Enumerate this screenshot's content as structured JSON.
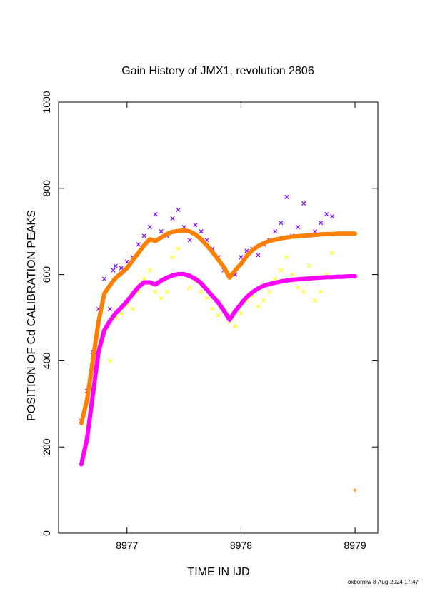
{
  "chart_data": {
    "type": "scatter",
    "title": "Gain History of JMX1, revolution 2806",
    "xlabel": "TIME IN IJD",
    "ylabel": "POSITION OF Cd CALIBRATION PEAKS",
    "xlim": [
      8976.4,
      8979.2
    ],
    "ylim": [
      0,
      1000
    ],
    "xticks": [
      8977,
      8978,
      8979
    ],
    "xtick_labels": [
      "8977",
      "8978",
      "8979"
    ],
    "yticks": [
      0,
      200,
      400,
      600,
      800,
      1000
    ],
    "ytick_labels": [
      "0",
      "200",
      "400",
      "600",
      "800",
      "1000"
    ],
    "grid": false,
    "legend": "none",
    "footer": "oxborrow  8-Aug-2024 17:47",
    "series": [
      {
        "marker": "x",
        "color": "#7f00ff",
        "x": [
          8976.6,
          8976.65,
          8976.7,
          8976.75,
          8976.8,
          8976.85,
          8976.88,
          8976.9,
          8976.95,
          8977.0,
          8977.05,
          8977.1,
          8977.15,
          8977.2,
          8977.25,
          8977.3,
          8977.35,
          8977.4,
          8977.45,
          8977.5,
          8977.55,
          8977.6,
          8977.65,
          8977.7,
          8977.75,
          8977.8,
          8977.85,
          8977.9,
          8977.95,
          8978.0,
          8978.05,
          8978.1,
          8978.15,
          8978.2,
          8978.25,
          8978.3,
          8978.35,
          8978.4,
          8978.45,
          8978.5,
          8978.55,
          8978.6,
          8978.65,
          8978.7,
          8978.75,
          8978.8
        ],
        "values": [
          260,
          330,
          420,
          520,
          590,
          520,
          610,
          620,
          615,
          630,
          640,
          670,
          690,
          710,
          740,
          700,
          690,
          730,
          750,
          710,
          680,
          715,
          700,
          680,
          660,
          640,
          610,
          595,
          600,
          640,
          655,
          660,
          645,
          670,
          680,
          700,
          720,
          780,
          690,
          710,
          765,
          690,
          700,
          720,
          740,
          735
        ]
      },
      {
        "marker": "x",
        "color": "#ffff00",
        "x": [
          8976.6,
          8976.65,
          8976.7,
          8976.75,
          8976.8,
          8976.85,
          8976.9,
          8976.95,
          8977.0,
          8977.05,
          8977.1,
          8977.15,
          8977.2,
          8977.25,
          8977.3,
          8977.35,
          8977.4,
          8977.45,
          8977.5,
          8977.55,
          8977.6,
          8977.65,
          8977.7,
          8977.75,
          8977.8,
          8977.85,
          8977.9,
          8977.95,
          8978.0,
          8978.05,
          8978.1,
          8978.15,
          8978.2,
          8978.25,
          8978.3,
          8978.35,
          8978.4,
          8978.45,
          8978.5,
          8978.55,
          8978.6,
          8978.65,
          8978.7,
          8978.75,
          8978.8
        ],
        "values": [
          160,
          250,
          340,
          430,
          470,
          400,
          500,
          510,
          530,
          520,
          560,
          590,
          610,
          560,
          545,
          560,
          640,
          660,
          600,
          570,
          585,
          560,
          545,
          520,
          505,
          520,
          490,
          480,
          510,
          540,
          550,
          525,
          540,
          560,
          590,
          610,
          640,
          600,
          570,
          560,
          620,
          540,
          560,
          600,
          650
        ]
      },
      {
        "marker": "+",
        "color": "#ff7f00",
        "x": [
          8976.6,
          8976.65,
          8976.7,
          8976.75,
          8976.8,
          8976.85,
          8976.9,
          8976.95,
          8977.0,
          8977.05,
          8977.1,
          8977.15,
          8977.2,
          8977.25,
          8977.3,
          8977.35,
          8977.4,
          8977.45,
          8977.5,
          8977.55,
          8977.6,
          8977.65,
          8977.7,
          8977.75,
          8977.8,
          8977.85,
          8977.9,
          8977.95,
          8978.0,
          8978.05,
          8978.1,
          8978.15,
          8978.2,
          8978.25,
          8978.3,
          8978.35,
          8978.4,
          8978.45,
          8978.5,
          8978.55,
          8978.6,
          8978.65,
          8978.7,
          8978.75,
          8978.8,
          8978.85,
          8978.9,
          8978.95,
          8979.0,
          8979.0
        ],
        "values": [
          255,
          310,
          400,
          490,
          555,
          575,
          592,
          603,
          615,
          633,
          650,
          668,
          682,
          678,
          686,
          694,
          699,
          701,
          702,
          700,
          693,
          682,
          668,
          652,
          635,
          617,
          593,
          610,
          625,
          643,
          657,
          666,
          673,
          678,
          681,
          684,
          686,
          688,
          689,
          690,
          691,
          692,
          693,
          694,
          694,
          695,
          695,
          695,
          695,
          100
        ]
      },
      {
        "marker": "+",
        "color": "#ff00ff",
        "x": [
          8976.6,
          8976.65,
          8976.7,
          8976.75,
          8976.8,
          8976.85,
          8976.9,
          8976.95,
          8977.0,
          8977.05,
          8977.1,
          8977.15,
          8977.2,
          8977.25,
          8977.3,
          8977.35,
          8977.4,
          8977.45,
          8977.5,
          8977.55,
          8977.6,
          8977.65,
          8977.7,
          8977.75,
          8977.8,
          8977.85,
          8977.9,
          8977.95,
          8978.0,
          8978.05,
          8978.1,
          8978.15,
          8978.2,
          8978.25,
          8978.3,
          8978.35,
          8978.4,
          8978.45,
          8978.5,
          8978.55,
          8978.6,
          8978.65,
          8978.7,
          8978.75,
          8978.8,
          8978.85,
          8978.9,
          8978.95,
          8979.0
        ],
        "values": [
          160,
          220,
          320,
          420,
          470,
          492,
          510,
          523,
          538,
          555,
          571,
          582,
          582,
          577,
          586,
          593,
          598,
          601,
          601,
          597,
          590,
          580,
          565,
          550,
          535,
          516,
          495,
          515,
          532,
          548,
          559,
          568,
          574,
          578,
          581,
          584,
          586,
          588,
          589,
          590,
          591,
          592,
          593,
          594,
          594,
          595,
          595,
          596,
          596
        ]
      }
    ]
  }
}
